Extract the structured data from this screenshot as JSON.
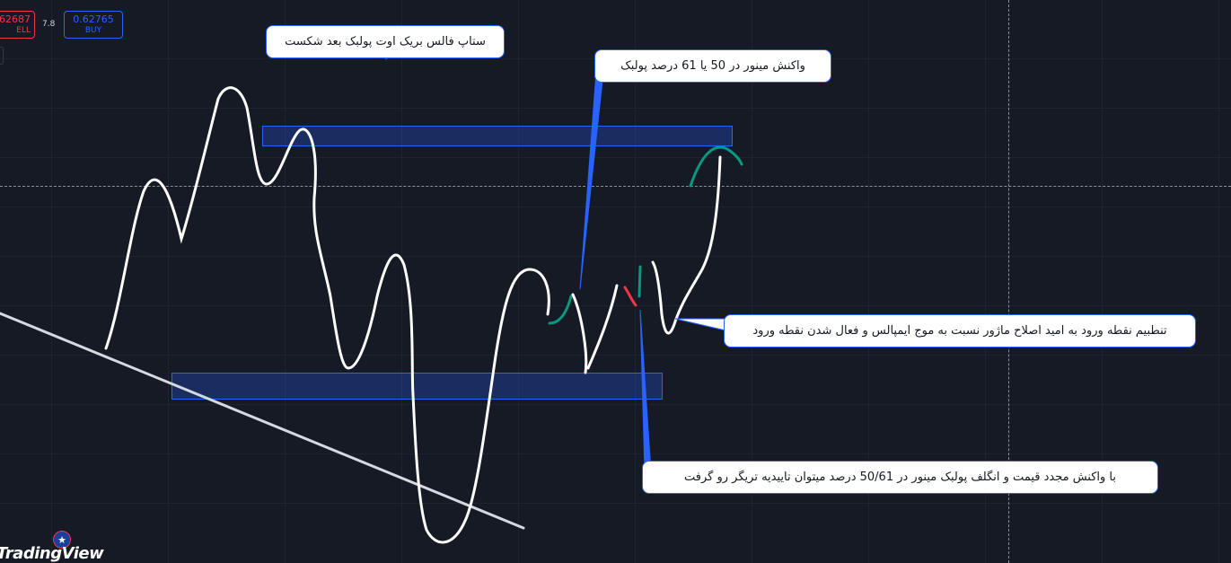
{
  "header": {
    "sell_price": "62687",
    "sell_label": "ELL",
    "spread": "7.8",
    "buy_price": "0.62765",
    "buy_label": "BUY"
  },
  "annotations": {
    "top_left": "ستاپ فالس بریک اوت پولبک بعد شکست",
    "top_right": "واکنش مینور در 50 یا 61 درصد پولبک",
    "middle_right": "تنطبیم نقطه ورود به امید اصلاح ماژور نسبت به موج ایمپالس و فعال شدن نقطه ورود",
    "bottom_right": "با واکنش مجدد قیمت و انگلف پولبک مینور در 50/61 درصد میتوان تاییدیه تریگر رو گرفت"
  },
  "branding": {
    "logo": "TradingView",
    "flag_icon": "au-flag-icon"
  },
  "colors": {
    "background": "#161a25",
    "zone_border": "#2962ff",
    "sell": "#f23645",
    "buy": "#2962ff",
    "drawing": "#ffffff",
    "green_stroke": "#089981",
    "red_stroke": "#f23645"
  }
}
